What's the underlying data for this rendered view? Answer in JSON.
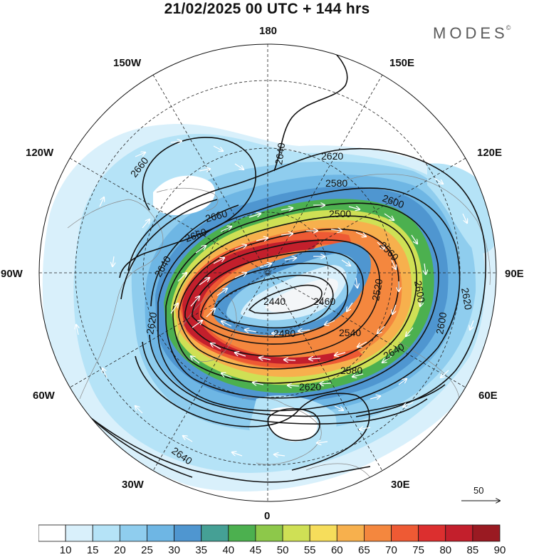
{
  "header": {
    "title": "21/02/2025  00 UTC  + 144 hrs",
    "brand": "MODES",
    "brand_mark": "©"
  },
  "map": {
    "projection": "north-polar-stereographic",
    "longitude_labels": {
      "n180": "180",
      "e150": "150E",
      "e120": "120E",
      "e90": "90E",
      "e60": "60E",
      "e30": "30E",
      "n0": "0",
      "w30": "30W",
      "w60": "60W",
      "w90": "90W",
      "w120": "120W",
      "w150": "150W"
    },
    "contour_labels": [
      {
        "text": "2660"
      },
      {
        "text": "2640"
      },
      {
        "text": "2620"
      },
      {
        "text": "2580"
      },
      {
        "text": "2600"
      },
      {
        "text": "2500"
      },
      {
        "text": "2560"
      },
      {
        "text": "2440"
      },
      {
        "text": "2480"
      },
      {
        "text": "2460"
      },
      {
        "text": "2520"
      },
      {
        "text": "2540"
      },
      {
        "text": "2640"
      },
      {
        "text": "2660"
      },
      {
        "text": "2620"
      },
      {
        "text": "2600"
      },
      {
        "text": "2620"
      },
      {
        "text": "2640"
      },
      {
        "text": "2580"
      },
      {
        "text": "2600"
      },
      {
        "text": "2620"
      },
      {
        "text": "2640"
      },
      {
        "text": "2660"
      }
    ],
    "wind_scale_label": "50"
  },
  "colorbar": {
    "ticks": [
      "10",
      "15",
      "20",
      "25",
      "30",
      "35",
      "40",
      "45",
      "50",
      "55",
      "60",
      "65",
      "70",
      "75",
      "80",
      "85",
      "90"
    ],
    "colors": [
      "#ffffff",
      "#d9f0fb",
      "#b5e3f7",
      "#8fcdee",
      "#6eb6e4",
      "#4f96d0",
      "#45a095",
      "#4cb04f",
      "#8dc84a",
      "#cfe055",
      "#f6dd5b",
      "#f7b04d",
      "#f4873e",
      "#ee5a34",
      "#dc2f2f",
      "#c31f2c",
      "#9a1a22"
    ]
  }
}
